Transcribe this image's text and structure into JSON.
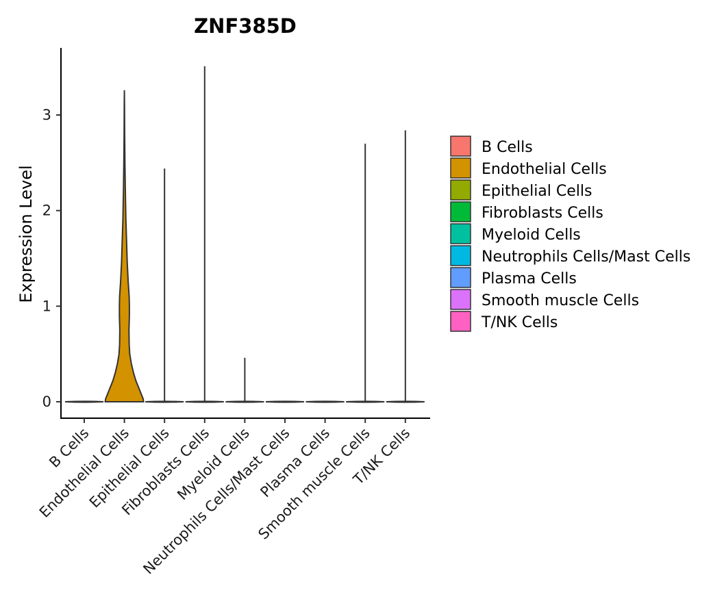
{
  "chart_data": {
    "type": "violin",
    "title": "ZNF385D",
    "xlabel": "",
    "ylabel": "Expression Level",
    "ylim": [
      -0.18,
      3.7
    ],
    "yticks": [
      0,
      1,
      2,
      3
    ],
    "grid": false,
    "legend_position": "right",
    "categories": [
      "B Cells",
      "Endothelial Cells",
      "Epithelial Cells",
      "Fibroblasts Cells",
      "Myeloid Cells",
      "Neutrophils Cells/Mast Cells",
      "Plasma Cells",
      "Smooth muscle Cells",
      "T/NK Cells"
    ],
    "colors": [
      "#F8766D",
      "#D39200",
      "#93AA00",
      "#00BA38",
      "#00C19F",
      "#00B9E3",
      "#619CFF",
      "#DB72FB",
      "#FF61C3"
    ],
    "max_values": [
      0,
      3.26,
      2.44,
      3.51,
      0.46,
      0,
      0,
      2.7,
      2.84
    ],
    "density_profiles": [
      [
        [
          0,
          1.0
        ]
      ],
      [
        [
          0,
          1.0
        ],
        [
          0.03,
          0.98
        ],
        [
          0.08,
          0.88
        ],
        [
          0.15,
          0.74
        ],
        [
          0.22,
          0.6
        ],
        [
          0.3,
          0.48
        ],
        [
          0.4,
          0.36
        ],
        [
          0.5,
          0.28
        ],
        [
          0.6,
          0.25
        ],
        [
          0.75,
          0.24
        ],
        [
          0.9,
          0.26
        ],
        [
          1.0,
          0.26
        ],
        [
          1.1,
          0.25
        ],
        [
          1.25,
          0.2
        ],
        [
          1.45,
          0.15
        ],
        [
          1.7,
          0.11
        ],
        [
          1.9,
          0.08
        ],
        [
          2.2,
          0.05
        ],
        [
          2.5,
          0.03
        ],
        [
          2.8,
          0.015
        ],
        [
          3.1,
          0.006
        ],
        [
          3.26,
          0.0
        ]
      ],
      [
        [
          0,
          1.0
        ]
      ],
      [
        [
          0,
          1.0
        ]
      ],
      [
        [
          0,
          1.0
        ]
      ],
      [
        [
          0,
          1.0
        ]
      ],
      [
        [
          0,
          1.0
        ]
      ],
      [
        [
          0,
          1.0
        ]
      ],
      [
        [
          0,
          1.0
        ]
      ]
    ]
  },
  "legend": {
    "items": [
      {
        "label": "B Cells",
        "color": "#F8766D"
      },
      {
        "label": "Endothelial Cells",
        "color": "#D39200"
      },
      {
        "label": "Epithelial Cells",
        "color": "#93AA00"
      },
      {
        "label": "Fibroblasts Cells",
        "color": "#00BA38"
      },
      {
        "label": "Myeloid Cells",
        "color": "#00C19F"
      },
      {
        "label": "Neutrophils Cells/Mast Cells",
        "color": "#00B9E3"
      },
      {
        "label": "Plasma Cells",
        "color": "#619CFF"
      },
      {
        "label": "Smooth muscle Cells",
        "color": "#DB72FB"
      },
      {
        "label": "T/NK Cells",
        "color": "#FF61C3"
      }
    ]
  }
}
